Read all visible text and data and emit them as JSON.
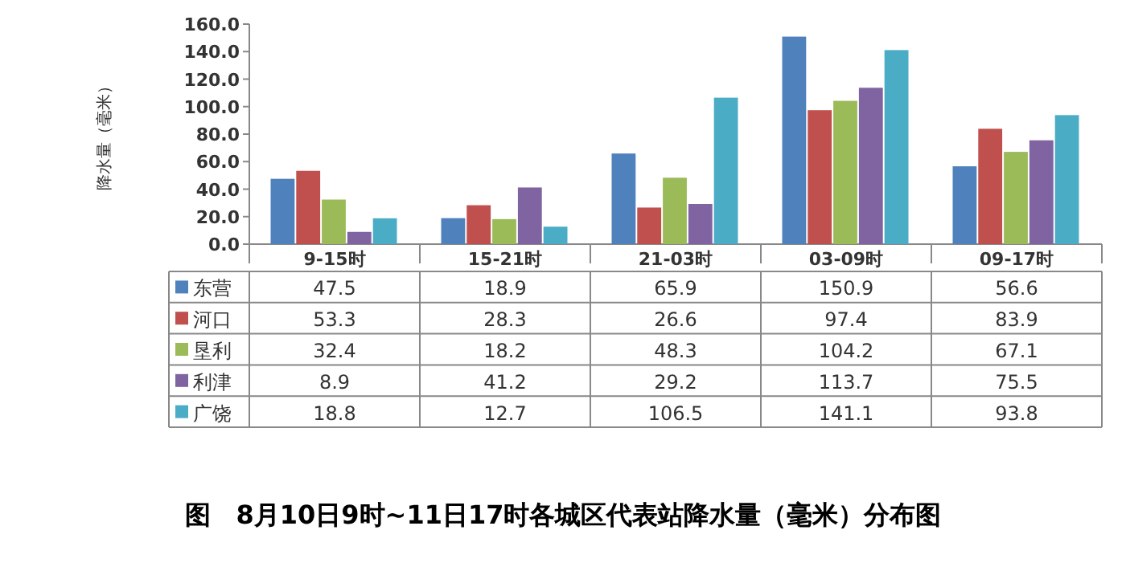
{
  "chart_data": {
    "type": "bar",
    "title": "图　8月10日9时~11日17时各城区代表站降水量（毫米）分布图",
    "ylabel": "降水量（毫米）",
    "categories": [
      "9-15时",
      "15-21时",
      "21-03时",
      "03-09时",
      "09-17时"
    ],
    "series": [
      {
        "name": "东营",
        "color": "#4f81bd",
        "values": [
          47.5,
          18.9,
          65.9,
          150.9,
          56.6
        ]
      },
      {
        "name": "河口",
        "color": "#c0504d",
        "values": [
          53.3,
          28.3,
          26.6,
          97.4,
          83.9
        ]
      },
      {
        "name": "垦利",
        "color": "#9bbb59",
        "values": [
          32.4,
          18.2,
          48.3,
          104.2,
          67.1
        ]
      },
      {
        "name": "利津",
        "color": "#8064a2",
        "values": [
          8.9,
          41.2,
          29.2,
          113.7,
          75.5
        ]
      },
      {
        "name": "广饶",
        "color": "#4bacc6",
        "values": [
          18.8,
          12.7,
          106.5,
          141.1,
          93.8
        ]
      }
    ],
    "ylim": [
      0,
      160
    ],
    "yticks": [
      {
        "value": 0,
        "label": "0.0"
      },
      {
        "value": 20,
        "label": "20.0"
      },
      {
        "value": 40,
        "label": "40.0"
      },
      {
        "value": 60,
        "label": "60.0"
      },
      {
        "value": 80,
        "label": "80.0"
      },
      {
        "value": 100,
        "label": "100.0"
      },
      {
        "value": 120,
        "label": "120.0"
      },
      {
        "value": 140,
        "label": "140.0"
      },
      {
        "value": 160,
        "label": "160.0"
      }
    ],
    "data_labels": true,
    "legend": "bottom",
    "grid": false
  }
}
